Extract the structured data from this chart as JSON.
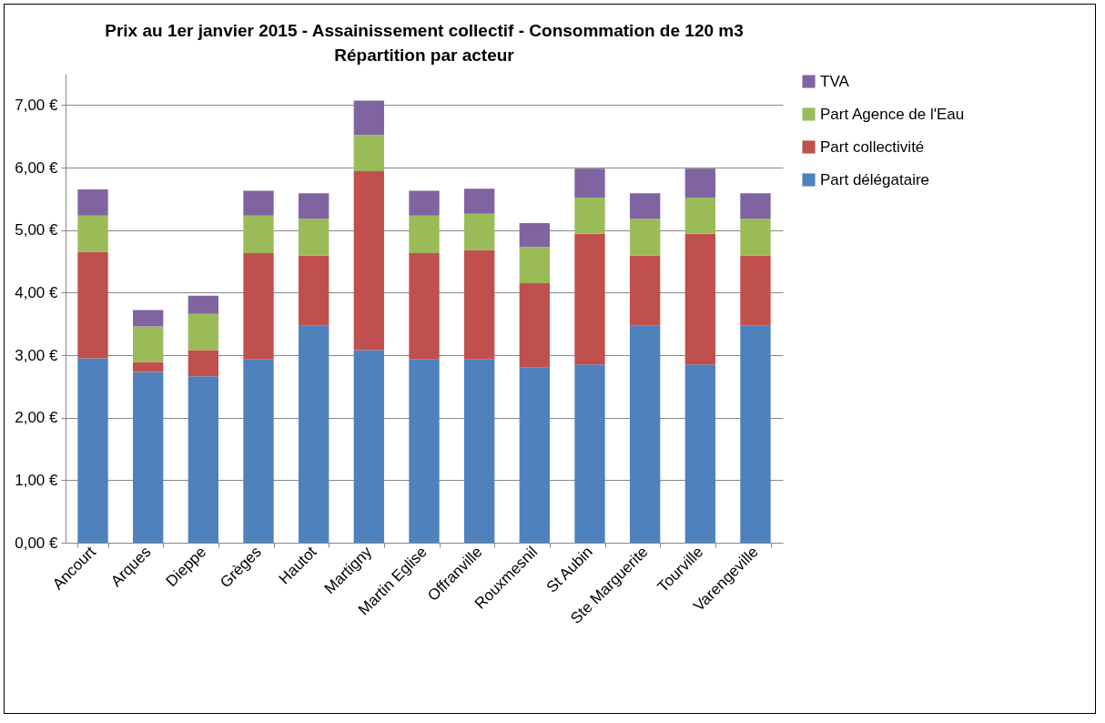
{
  "chart_data": {
    "type": "bar",
    "title": "Prix au 1er janvier 2015 - Assainissement collectif - Consommation de 120 m3",
    "subtitle": "Répartition par acteur",
    "categories": [
      "Ancourt",
      "Arques",
      "Dieppe",
      "Grèges",
      "Hautot",
      "Martigny",
      "Martin Eglise",
      "Offranville",
      "Rouxmesnil",
      "St Aubin",
      "Ste Marguerite",
      "Tourville",
      "Varengeville"
    ],
    "stacked": true,
    "series": [
      {
        "name": "Part délégataire",
        "color": "#4f81bd",
        "values": [
          2.95,
          2.73,
          2.66,
          2.93,
          3.47,
          3.08,
          2.93,
          2.93,
          2.8,
          2.85,
          3.47,
          2.85,
          3.47
        ]
      },
      {
        "name": "Part collectivité",
        "color": "#c0504d",
        "values": [
          1.7,
          0.16,
          0.42,
          1.7,
          1.12,
          2.86,
          1.7,
          1.75,
          1.35,
          2.09,
          1.12,
          2.09,
          1.12
        ]
      },
      {
        "name": "Part Agence de l'Eau",
        "color": "#9bbb59",
        "values": [
          0.58,
          0.57,
          0.58,
          0.6,
          0.59,
          0.58,
          0.6,
          0.58,
          0.58,
          0.58,
          0.59,
          0.58,
          0.59
        ]
      },
      {
        "name": "TVA",
        "color": "#8064a2",
        "values": [
          0.42,
          0.26,
          0.29,
          0.4,
          0.41,
          0.55,
          0.4,
          0.4,
          0.38,
          0.46,
          0.41,
          0.46,
          0.41
        ]
      }
    ],
    "ylim": [
      0,
      7.5
    ],
    "yticks": [
      {
        "value": 0,
        "label": "0,00 €"
      },
      {
        "value": 1,
        "label": "1,00 €"
      },
      {
        "value": 2,
        "label": "2,00 €"
      },
      {
        "value": 3,
        "label": "3,00 €"
      },
      {
        "value": 4,
        "label": "4,00 €"
      },
      {
        "value": 5,
        "label": "5,00 €"
      },
      {
        "value": 6,
        "label": "6,00 €"
      },
      {
        "value": 7,
        "label": "7,00 €"
      }
    ],
    "grid": "y",
    "legend": "right"
  }
}
